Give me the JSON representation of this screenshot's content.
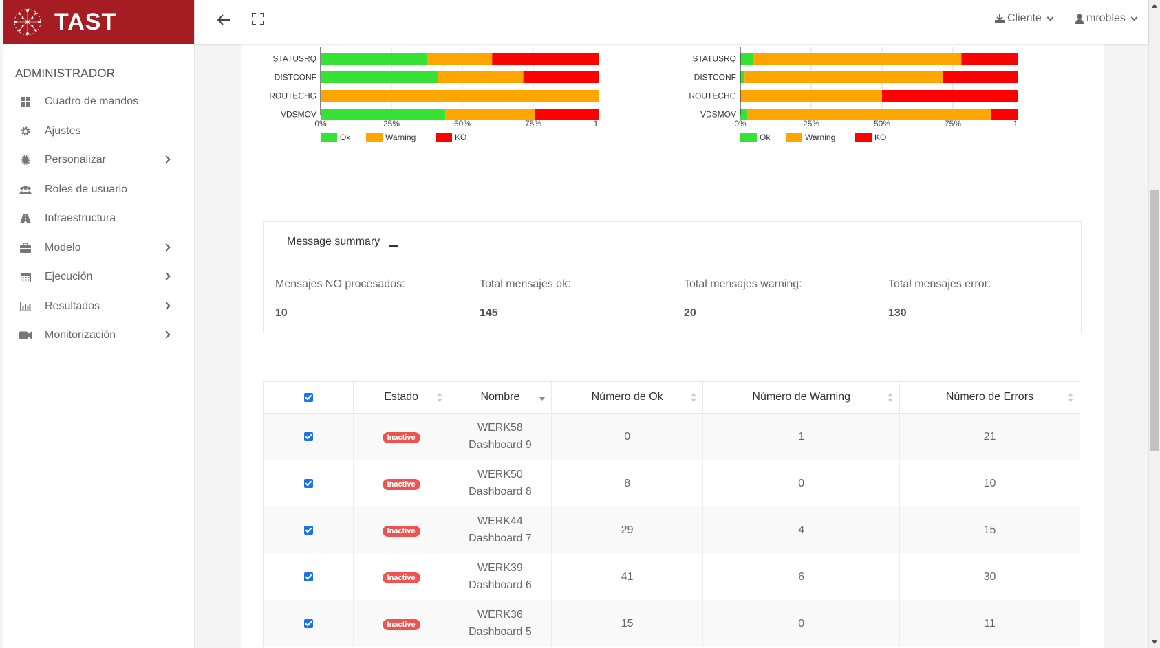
{
  "brand": {
    "title": "TAST"
  },
  "sidebar": {
    "section": "ADMINISTRADOR",
    "items": [
      {
        "label": "Cuadro de mandos",
        "icon": "dashboard-grid-icon",
        "sub": false
      },
      {
        "label": "Ajustes",
        "icon": "gear-icon",
        "sub": false
      },
      {
        "label": "Personalizar",
        "icon": "cog-badge-icon",
        "sub": true
      },
      {
        "label": "Roles de usuario",
        "icon": "users-icon",
        "sub": false
      },
      {
        "label": "Infraestructura",
        "icon": "road-icon",
        "sub": false
      },
      {
        "label": "Modelo",
        "icon": "briefcase-icon",
        "sub": true
      },
      {
        "label": "Ejecución",
        "icon": "calendar-icon",
        "sub": true
      },
      {
        "label": "Resultados",
        "icon": "bar-chart-icon",
        "sub": true
      },
      {
        "label": "Monitorización",
        "icon": "video-camera-icon",
        "sub": true
      }
    ]
  },
  "topbar": {
    "client_label": "Cliente",
    "user_label": "mrobles"
  },
  "chart_data": [
    {
      "type": "bar",
      "orientation": "horizontal-stacked-percent",
      "categories": [
        "STATUSRQ",
        "DISTCONF",
        "ROUTECHG",
        "VDSMOV"
      ],
      "series": [
        {
          "name": "Ok",
          "values": [
            37.5,
            41.5,
            0,
            44
          ]
        },
        {
          "name": "Warning",
          "values": [
            23,
            30,
            100,
            31.5
          ]
        },
        {
          "name": "KO",
          "values": [
            39.5,
            28.5,
            0,
            24.5
          ]
        }
      ],
      "xticks": [
        "0%",
        "25%",
        "50%",
        "75%",
        "100%"
      ],
      "xlim": [
        0,
        100
      ],
      "legend": [
        "Ok",
        "Warning",
        "KO"
      ],
      "colors": {
        "Ok": "#36e236",
        "Warning": "#ffa500",
        "KO": "#ff0000"
      }
    },
    {
      "type": "bar",
      "orientation": "horizontal-stacked-percent",
      "categories": [
        "STATUSRQ",
        "DISTCONF",
        "ROUTECHG",
        "VDSMOV"
      ],
      "series": [
        {
          "name": "Ok",
          "values": [
            4.5,
            1.5,
            0,
            2.5
          ]
        },
        {
          "name": "Warning",
          "values": [
            73.5,
            70,
            50,
            86
          ]
        },
        {
          "name": "KO",
          "values": [
            22,
            28.5,
            50,
            11.5
          ]
        }
      ],
      "xticks": [
        "0%",
        "25%",
        "50%",
        "75%",
        "100%"
      ],
      "xlim": [
        0,
        100
      ],
      "legend": [
        "Ok",
        "Warning",
        "KO"
      ],
      "colors": {
        "Ok": "#36e236",
        "Warning": "#ffa500",
        "KO": "#ff0000"
      }
    }
  ],
  "summary": {
    "title": "Message summary",
    "stats": [
      {
        "label": "Mensajes NO procesados:",
        "value": "10"
      },
      {
        "label": "Total mensajes ok:",
        "value": "145"
      },
      {
        "label": "Total mensajes warning:",
        "value": "20"
      },
      {
        "label": "Total mensajes error:",
        "value": "130"
      }
    ]
  },
  "table": {
    "columns": [
      "Estado",
      "Nombre",
      "Número de Ok",
      "Número de Warning",
      "Número de Errors"
    ],
    "rows": [
      {
        "estado": "Inactive",
        "nombre1": "WERK58",
        "nombre2": "Dashboard 9",
        "ok": "0",
        "warning": "1",
        "errors": "21"
      },
      {
        "estado": "Inactive",
        "nombre1": "WERK50",
        "nombre2": "Dashboard 8",
        "ok": "8",
        "warning": "0",
        "errors": "10"
      },
      {
        "estado": "Inactive",
        "nombre1": "WERK44",
        "nombre2": "Dashboard 7",
        "ok": "29",
        "warning": "4",
        "errors": "15"
      },
      {
        "estado": "Inactive",
        "nombre1": "WERK39",
        "nombre2": "Dashboard 6",
        "ok": "41",
        "warning": "6",
        "errors": "30"
      },
      {
        "estado": "Inactive",
        "nombre1": "WERK36",
        "nombre2": "Dashboard 5",
        "ok": "15",
        "warning": "0",
        "errors": "11"
      }
    ]
  }
}
